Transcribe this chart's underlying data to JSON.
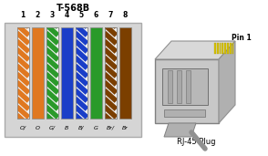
{
  "title": "T-568B",
  "pin_numbers": [
    "1",
    "2",
    "3",
    "4",
    "5",
    "6",
    "7",
    "8"
  ],
  "wire_labels": [
    "O/",
    "O",
    "G/",
    "B",
    "B/",
    "G",
    "Br/",
    "Br"
  ],
  "wire_types": [
    {
      "base": "#f0f0f0",
      "stripe": "#e07820",
      "has_stripe": true
    },
    {
      "base": "#e07820",
      "stripe": null,
      "has_stripe": false
    },
    {
      "base": "#f0f0f0",
      "stripe": "#2a9a2a",
      "has_stripe": true
    },
    {
      "base": "#1a3ec8",
      "stripe": null,
      "has_stripe": false
    },
    {
      "base": "#f0f0f0",
      "stripe": "#1a3ec8",
      "has_stripe": true
    },
    {
      "base": "#2a9a2a",
      "stripe": null,
      "has_stripe": false
    },
    {
      "base": "#f0f0f0",
      "stripe": "#7B3F00",
      "has_stripe": true
    },
    {
      "base": "#7B3F00",
      "stripe": null,
      "has_stripe": false
    }
  ],
  "panel_bg": "#d5d5d5",
  "panel_edge": "#aaaaaa",
  "fig_bg": "#ffffff",
  "rj45_label": "RJ-45 Plug",
  "pin1_label": "Pin 1"
}
